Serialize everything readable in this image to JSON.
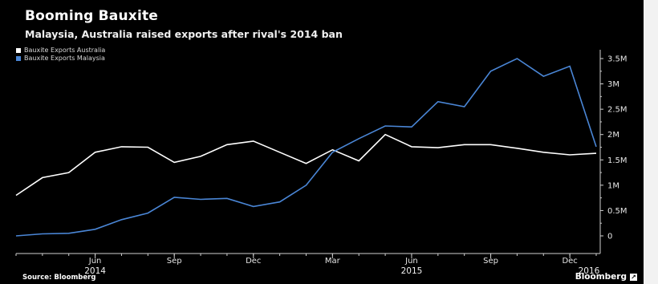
{
  "page": {
    "title": "Booming Bauxite",
    "subtitle": "Malaysia, Australia raised exports after rival's 2014 ban",
    "source": "Source: Bloomberg",
    "brand": "Bloomberg",
    "brand_mark_icon": "bloomberg-square-icon",
    "background_color": "#000000"
  },
  "chart_data": {
    "type": "line",
    "title": "Booming Bauxite",
    "subtitle": "Malaysia, Australia raised exports after rival's 2014 ban",
    "xlabel": "",
    "ylabel": "",
    "x": [
      "2014-03",
      "2014-04",
      "2014-05",
      "2014-06",
      "2014-07",
      "2014-08",
      "2014-09",
      "2014-10",
      "2014-11",
      "2014-12",
      "2015-01",
      "2015-02",
      "2015-03",
      "2015-04",
      "2015-05",
      "2015-06",
      "2015-07",
      "2015-08",
      "2015-09",
      "2015-10",
      "2015-11",
      "2015-12",
      "2016-01"
    ],
    "series": [
      {
        "name": "Bauxite Exports Australia",
        "color": "#ffffff",
        "values": [
          800000,
          1150000,
          1250000,
          1650000,
          1760000,
          1750000,
          1450000,
          1570000,
          1800000,
          1870000,
          1650000,
          1430000,
          1700000,
          1480000,
          2000000,
          1760000,
          1740000,
          1800000,
          1800000,
          1730000,
          1650000,
          1600000,
          1630000
        ]
      },
      {
        "name": "Bauxite Exports Malaysia",
        "color": "#4a86d6",
        "values": [
          0,
          40000,
          50000,
          130000,
          320000,
          450000,
          760000,
          720000,
          740000,
          580000,
          670000,
          1000000,
          1650000,
          1920000,
          2170000,
          2150000,
          2650000,
          2550000,
          3250000,
          3500000,
          3150000,
          3350000,
          1760000
        ]
      }
    ],
    "y_ticks": [
      0,
      500000,
      1000000,
      1500000,
      2000000,
      2500000,
      3000000,
      3500000
    ],
    "y_tick_labels": [
      "0",
      "0.5M",
      "1M",
      "1.5M",
      "2M",
      "2.5M",
      "3M",
      "3.5M"
    ],
    "ylim": [
      -100000,
      3700000
    ],
    "x_ticks": [
      {
        "x": "2014-06",
        "label": "Jun"
      },
      {
        "x": "2014-09",
        "label": "Sep"
      },
      {
        "x": "2014-12",
        "label": "Dec"
      },
      {
        "x": "2015-03",
        "label": "Mar"
      },
      {
        "x": "2015-06",
        "label": "Jun"
      },
      {
        "x": "2015-09",
        "label": "Sep"
      },
      {
        "x": "2015-12",
        "label": "Dec"
      }
    ],
    "year_labels": [
      {
        "x": "2014-06",
        "label": "2014"
      },
      {
        "x": "2015-06",
        "label": "2015"
      },
      {
        "x": "2016-01",
        "label": "2016"
      }
    ],
    "y_axis_position": "right",
    "grid": false,
    "legend_placement": "top-left",
    "axis_color": "#cfcfcf"
  }
}
